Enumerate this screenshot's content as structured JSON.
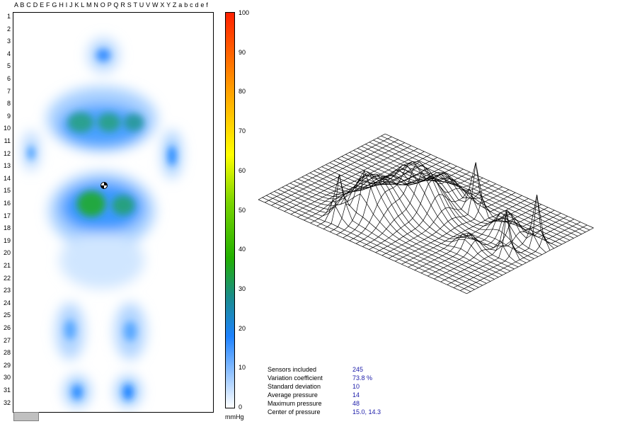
{
  "grid": {
    "column_letters": "A B C D E F G H  I  J  K L M N O  P Q R  S T U V W X  Y  Z a b c d e f",
    "row_numbers": [
      "1",
      "2",
      "3",
      "4",
      "5",
      "6",
      "7",
      "8",
      "9",
      "10",
      "11",
      "12",
      "13",
      "14",
      "15",
      "16",
      "17",
      "18",
      "19",
      "20",
      "21",
      "22",
      "23",
      "24",
      "25",
      "26",
      "27",
      "28",
      "29",
      "30",
      "31",
      "32"
    ]
  },
  "colorbar": {
    "ticks": [
      "100",
      "90",
      "80",
      "70",
      "60",
      "50",
      "40",
      "30",
      "20",
      "10",
      "0"
    ],
    "unit": "mmHg"
  },
  "stats": [
    {
      "label": "Sensors included",
      "value": "245"
    },
    {
      "label": "Variation coefficient",
      "value": "73.8 %"
    },
    {
      "label": "Standard deviation",
      "value": "10"
    },
    {
      "label": "Average pressure",
      "value": "14"
    },
    {
      "label": "Maximum pressure",
      "value": "48"
    },
    {
      "label": "Center of pressure",
      "value": "15.0, 14.3"
    }
  ],
  "colors": {
    "stat_value": "#1a1aa8",
    "low": "#a8d0ff",
    "mid": "#2a8cff",
    "high": "#22a020"
  }
}
